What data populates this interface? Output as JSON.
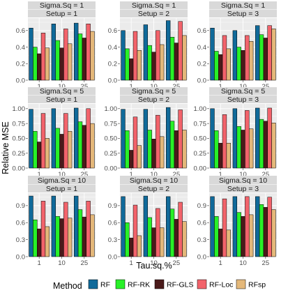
{
  "chart_data": {
    "type": "bar",
    "xlabel": "Tau.sq.%",
    "ylabel": "Relative MSE",
    "categories": [
      "1",
      "10",
      "25"
    ],
    "legend": {
      "title": "Method",
      "position": "bottom",
      "items": [
        {
          "name": "RF",
          "color": "#106a9a"
        },
        {
          "name": "RF-RK",
          "color": "#28f028"
        },
        {
          "name": "RF-GLS",
          "color": "#4a1a1a"
        },
        {
          "name": "RF-Loc",
          "color": "#f2636b"
        },
        {
          "name": "RFsp",
          "color": "#e4b87a"
        }
      ]
    },
    "rows": [
      {
        "ylim": [
          0,
          0.75
        ],
        "yticks": [
          0.0,
          0.2,
          0.4,
          0.6
        ],
        "ytick_labels": [
          "0.0",
          "0.2",
          "0.4",
          "0.6"
        ],
        "panels": [
          {
            "strip_top": "Sigma.Sq = 1",
            "strip_bottom": "Setup = 1",
            "values": [
              [
                0.63,
                0.4,
                0.32,
                0.57,
                0.39
              ],
              [
                0.68,
                0.48,
                0.39,
                0.62,
                0.44
              ],
              [
                0.69,
                0.56,
                0.51,
                0.68,
                0.59
              ]
            ]
          },
          {
            "strip_top": "Sigma.Sq = 1",
            "strip_bottom": "Setup = 2",
            "values": [
              [
                0.6,
                0.38,
                0.26,
                0.59,
                0.36
              ],
              [
                0.67,
                0.42,
                0.34,
                0.6,
                0.43
              ],
              [
                0.72,
                0.52,
                0.45,
                0.71,
                0.54
              ]
            ]
          },
          {
            "strip_top": "Sigma.Sq = 1",
            "strip_bottom": "Setup = 3",
            "values": [
              [
                0.63,
                0.35,
                0.31,
                0.54,
                0.38
              ],
              [
                0.6,
                0.4,
                0.36,
                0.54,
                0.47
              ],
              [
                0.66,
                0.55,
                0.51,
                0.66,
                0.62
              ]
            ]
          }
        ]
      },
      {
        "ylim": [
          0,
          1.08
        ],
        "yticks": [
          0.0,
          0.25,
          0.5,
          0.75,
          1.0
        ],
        "ytick_labels": [
          "0.00",
          "0.25",
          "0.50",
          "0.75",
          "1.00"
        ],
        "panels": [
          {
            "strip_top": "Sigma.Sq = 5",
            "strip_bottom": "Setup = 1",
            "values": [
              [
                0.99,
                0.62,
                0.44,
                0.92,
                0.5
              ],
              [
                1.0,
                0.67,
                0.57,
                0.92,
                0.62
              ],
              [
                1.01,
                0.78,
                0.72,
                1.0,
                0.75
              ]
            ]
          },
          {
            "strip_top": "Sigma.Sq = 5",
            "strip_bottom": "Setup = 2",
            "values": [
              [
                0.99,
                0.63,
                0.3,
                0.86,
                0.38
              ],
              [
                0.99,
                0.64,
                0.49,
                0.89,
                0.53
              ],
              [
                1.02,
                0.79,
                0.63,
                0.98,
                0.64
              ]
            ]
          },
          {
            "strip_top": "Sigma.Sq = 5",
            "strip_bottom": "Setup = 3",
            "values": [
              [
                1.0,
                0.63,
                0.42,
                0.9,
                0.42
              ],
              [
                1.0,
                0.7,
                0.64,
                0.97,
                0.66
              ],
              [
                1.01,
                0.82,
                0.79,
                1.01,
                0.76
              ]
            ]
          }
        ]
      },
      {
        "ylim": [
          0,
          1.12
        ],
        "yticks": [
          0.0,
          0.3,
          0.6,
          0.9
        ],
        "ytick_labels": [
          "0.0",
          "0.3",
          "0.6",
          "0.9"
        ],
        "panels": [
          {
            "strip_top": "Sigma.Sq = 10",
            "strip_bottom": "Setup = 1",
            "values": [
              [
                1.07,
                0.65,
                0.49,
                0.98,
                0.53
              ],
              [
                1.07,
                0.71,
                0.67,
                0.96,
                0.68
              ],
              [
                1.07,
                0.83,
                0.7,
                0.98,
                0.74
              ]
            ]
          },
          {
            "strip_top": "Sigma.Sq = 10",
            "strip_bottom": "Setup = 2",
            "values": [
              [
                1.06,
                0.6,
                0.33,
                0.91,
                0.37
              ],
              [
                1.07,
                0.69,
                0.51,
                0.85,
                0.51
              ],
              [
                1.06,
                0.84,
                0.66,
                0.96,
                0.62
              ]
            ]
          },
          {
            "strip_top": "Sigma.Sq = 10",
            "strip_bottom": "Setup = 3",
            "values": [
              [
                1.06,
                0.71,
                0.49,
                1.02,
                0.47
              ],
              [
                1.06,
                0.78,
                0.71,
                1.06,
                0.74
              ],
              [
                1.06,
                0.92,
                0.87,
                1.05,
                0.83
              ]
            ]
          }
        ]
      }
    ]
  }
}
